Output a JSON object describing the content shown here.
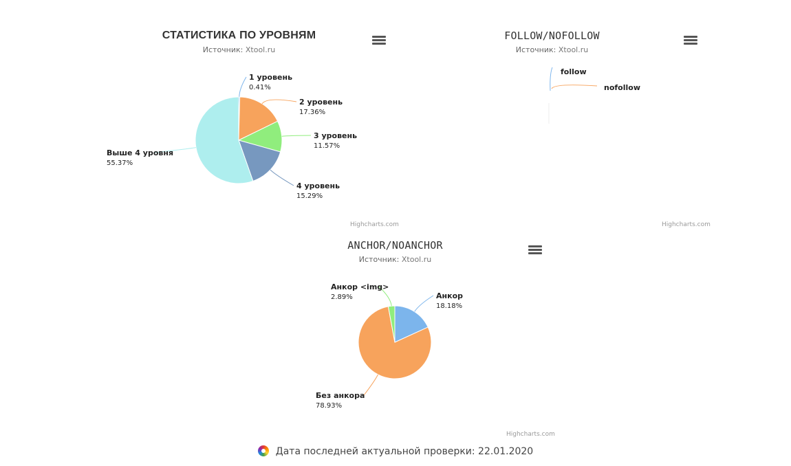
{
  "source_prefix": "Источник: ",
  "credits": "Highcharts.com",
  "footer": {
    "label": "Дата последней актуальной проверки: 22.01.2020"
  },
  "chart_data": [
    {
      "type": "pie",
      "title": "СТАТИСТИКА ПО УРОВНЯМ",
      "source": "Xtool.ru",
      "slices": [
        {
          "name": "1 уровень",
          "pct_label": "0.41%",
          "value": 0.41,
          "color": "#7cb5ec"
        },
        {
          "name": "2 уровень",
          "pct_label": "17.36%",
          "value": 17.36,
          "color": "#f7a35c"
        },
        {
          "name": "3 уровень",
          "pct_label": "11.57%",
          "value": 11.57,
          "color": "#90ed7d"
        },
        {
          "name": "4 уровень",
          "pct_label": "15.29%",
          "value": 15.29,
          "color": "#7798bf"
        },
        {
          "name": "Выше 4 уровня",
          "pct_label": "55.37%",
          "value": 55.37,
          "color": "#aeeeee"
        }
      ]
    },
    {
      "type": "pie",
      "title": "FOLLOW/NOFOLLOW",
      "source": "Xtool.ru",
      "slices": [
        {
          "name": "follow",
          "value": 0,
          "color": "#7cb5ec"
        },
        {
          "name": "nofollow",
          "value": 0,
          "color": "#f7a35c"
        }
      ]
    },
    {
      "type": "pie",
      "title": "ANCHOR/NOANCHOR",
      "source": "Xtool.ru",
      "slices": [
        {
          "name": "Анкор",
          "pct_label": "18.18%",
          "value": 18.18,
          "color": "#7cb5ec"
        },
        {
          "name": "Без анкора",
          "pct_label": "78.93%",
          "value": 78.93,
          "color": "#f7a35c"
        },
        {
          "name": "Анкор <img>",
          "pct_label": "2.89%",
          "value": 2.89,
          "color": "#90ed7d"
        }
      ]
    }
  ]
}
